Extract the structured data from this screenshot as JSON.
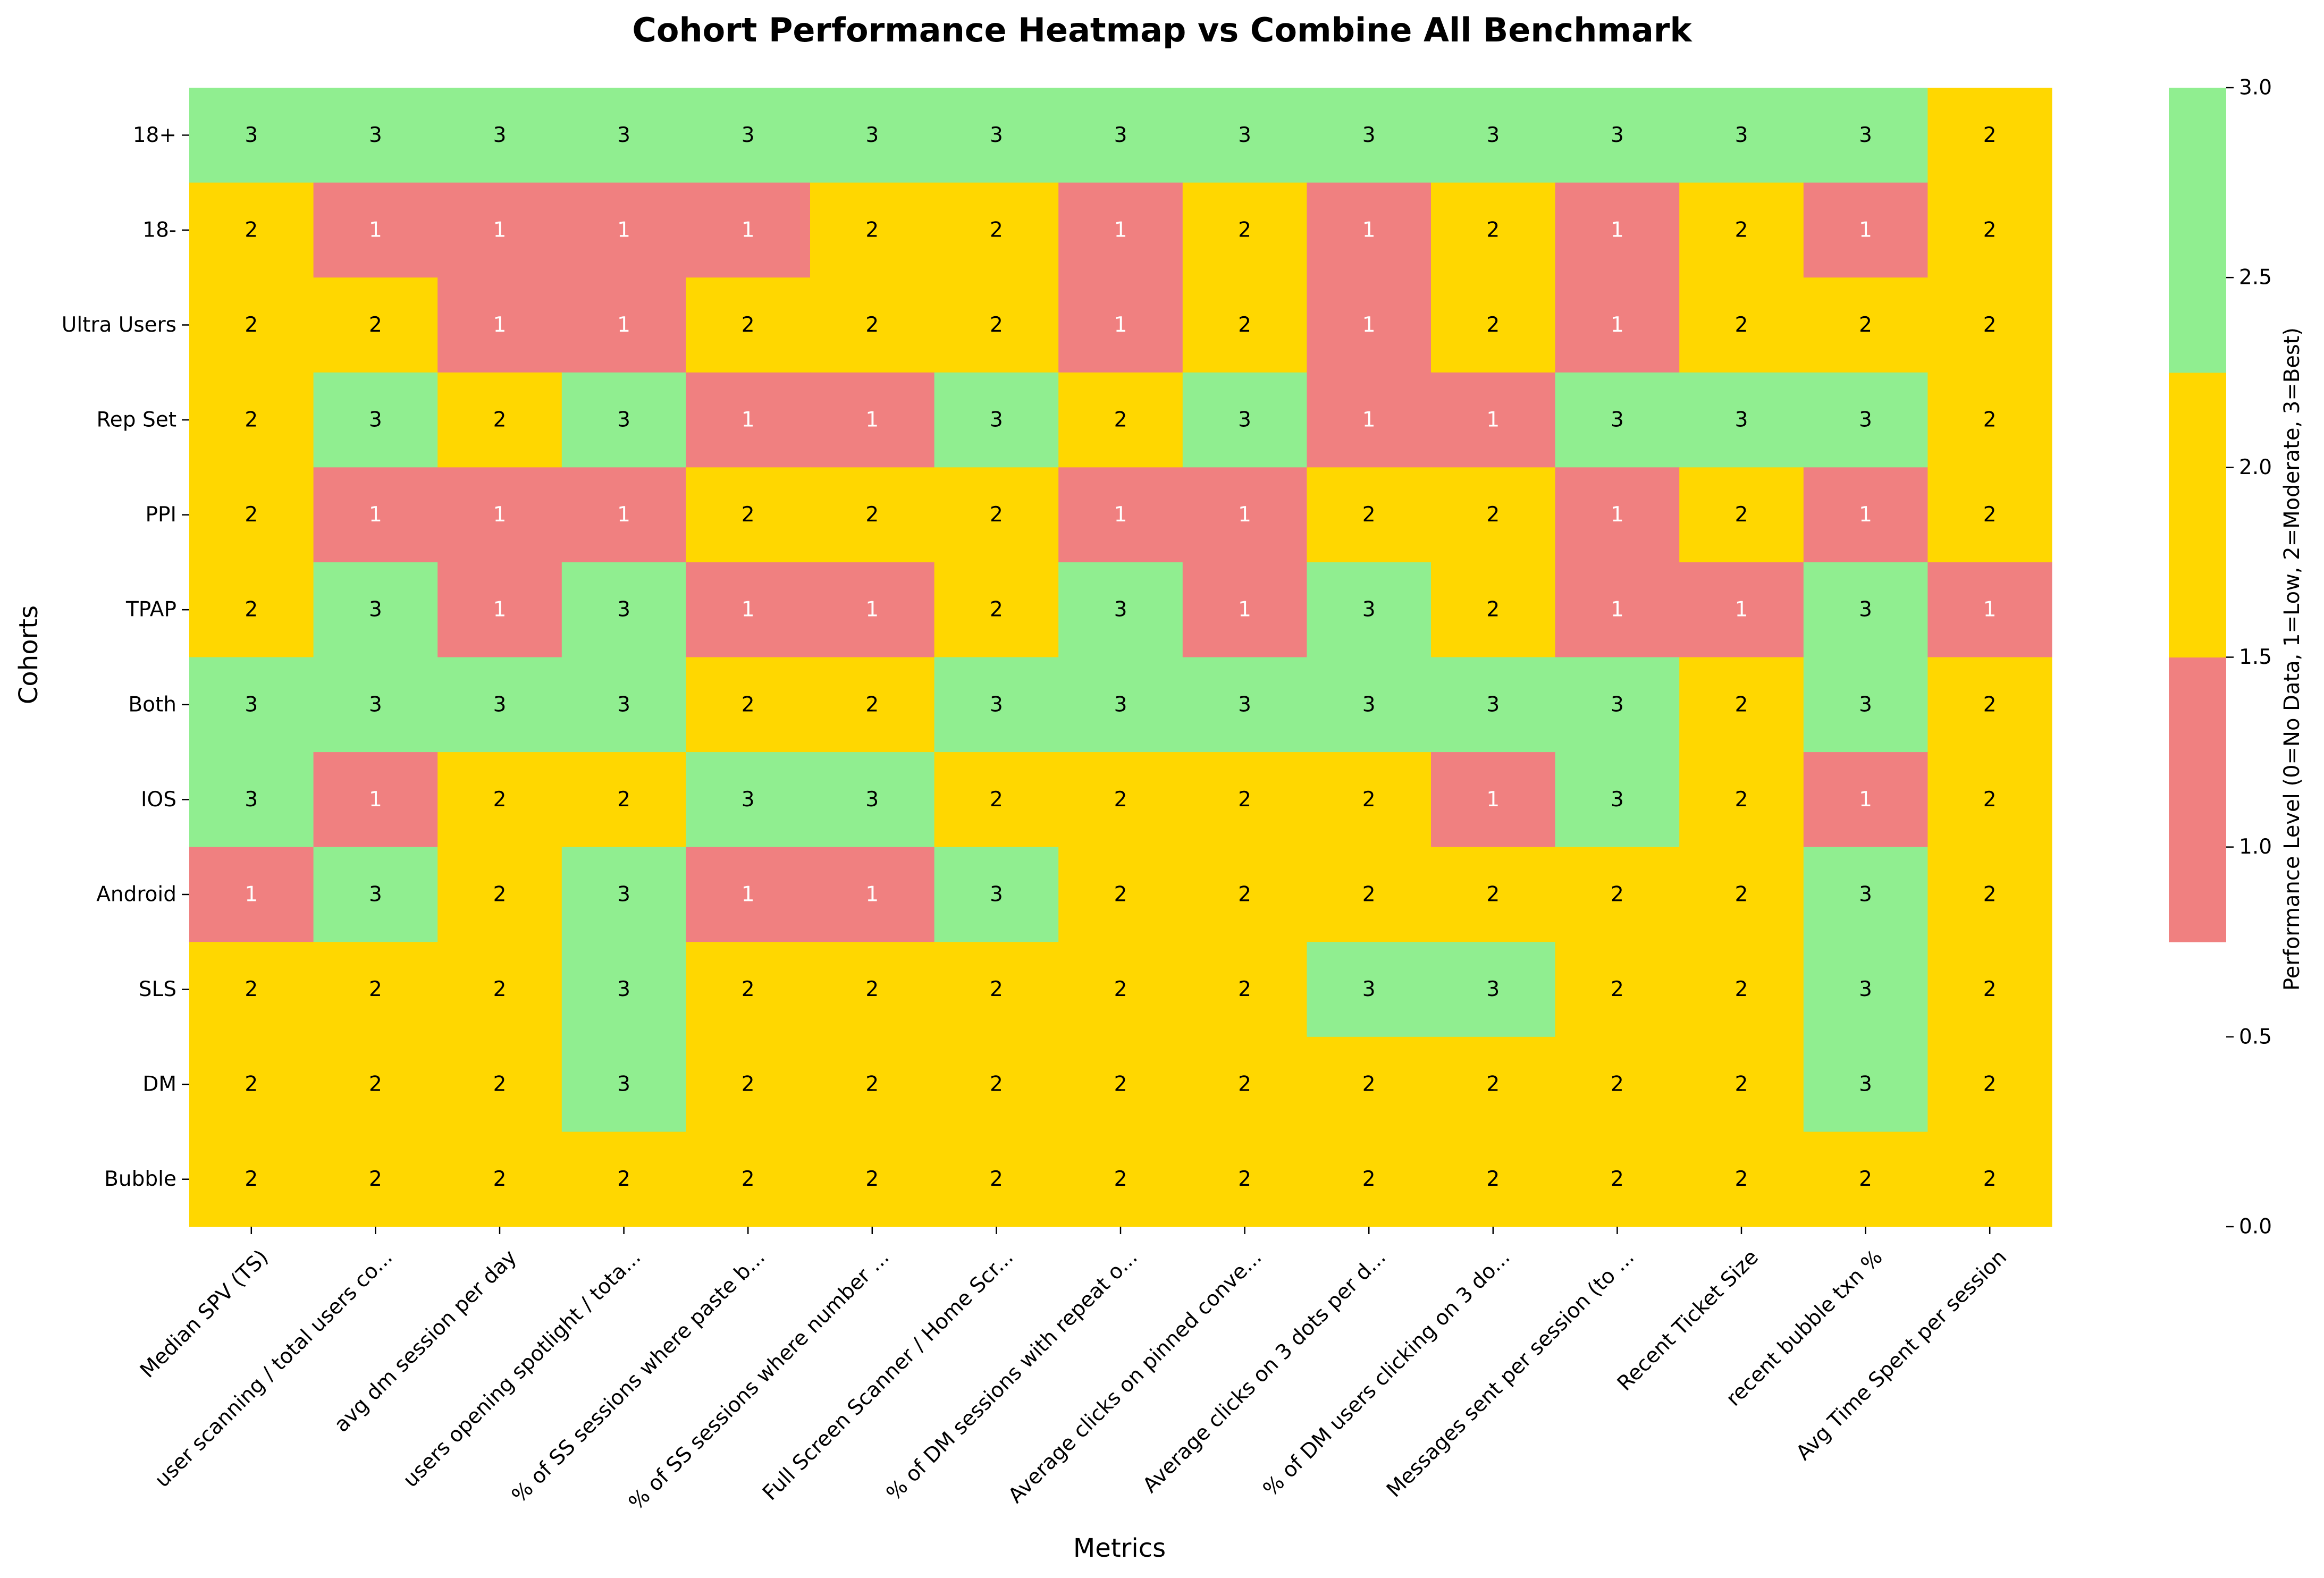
{
  "colors": {
    "level_1": "#f08080",
    "level_2": "#ffd700",
    "level_3": "#90ee90",
    "text_dark": "#000000",
    "text_light": "#ffffff"
  },
  "chart_data": {
    "type": "heatmap",
    "title": "Cohort Performance Heatmap vs Combine All Benchmark",
    "xlabel": "Metrics",
    "ylabel": "Cohorts",
    "colorbar_label": "Performance Level (0=No Data, 1=Low, 2=Moderate, 3=Best)",
    "colorbar_range": [
      0.0,
      3.0
    ],
    "colorbar_ticks": [
      "0.0",
      "0.5",
      "1.0",
      "1.5",
      "2.0",
      "2.5",
      "3.0"
    ],
    "colorbar_bands": [
      {
        "from": 0.75,
        "to": 1.5,
        "color": "#f08080"
      },
      {
        "from": 1.5,
        "to": 2.25,
        "color": "#ffd700"
      },
      {
        "from": 2.25,
        "to": 3.0,
        "color": "#90ee90"
      }
    ],
    "metrics": [
      "Median SPV (TS)",
      "user scanning / total users co...",
      "avg dm session per day",
      "users opening spotlight / tota...",
      "% of SS sessions where paste b...",
      "% of SS sessions where number ...",
      "Full Screen Scanner / Home Scr...",
      "% of DM sessions with repeat o...",
      "Average clicks on pinned conve...",
      "Average clicks on 3 dots per d...",
      "% of DM users clicking on 3 do...",
      "Messages sent per session (to ...",
      "Recent Ticket Size",
      "recent bubble txn %",
      "Avg Time Spent per session"
    ],
    "cohorts": [
      "18+",
      "18-",
      "Ultra Users",
      "Rep Set",
      "PPI",
      "TPAP",
      "Both",
      "IOS ",
      "Android",
      "SLS ",
      "DM",
      "Bubble"
    ],
    "values": [
      [
        3,
        3,
        3,
        3,
        3,
        3,
        3,
        3,
        3,
        3,
        3,
        3,
        3,
        3,
        2
      ],
      [
        2,
        1,
        1,
        1,
        1,
        2,
        2,
        1,
        2,
        1,
        2,
        1,
        2,
        1,
        2
      ],
      [
        2,
        2,
        1,
        1,
        2,
        2,
        2,
        1,
        2,
        1,
        2,
        1,
        2,
        2,
        2
      ],
      [
        2,
        3,
        2,
        3,
        1,
        1,
        3,
        2,
        3,
        1,
        1,
        3,
        3,
        3,
        2
      ],
      [
        2,
        1,
        1,
        1,
        2,
        2,
        2,
        1,
        1,
        2,
        2,
        1,
        2,
        1,
        2
      ],
      [
        2,
        3,
        1,
        3,
        1,
        1,
        2,
        3,
        1,
        3,
        2,
        1,
        1,
        3,
        1
      ],
      [
        3,
        3,
        3,
        3,
        2,
        2,
        3,
        3,
        3,
        3,
        3,
        3,
        2,
        3,
        2
      ],
      [
        3,
        1,
        2,
        2,
        3,
        3,
        2,
        2,
        2,
        2,
        1,
        3,
        2,
        1,
        2
      ],
      [
        1,
        3,
        2,
        3,
        1,
        1,
        3,
        2,
        2,
        2,
        2,
        2,
        2,
        3,
        2
      ],
      [
        2,
        2,
        2,
        3,
        2,
        2,
        2,
        2,
        2,
        3,
        3,
        2,
        2,
        3,
        2
      ],
      [
        2,
        2,
        2,
        3,
        2,
        2,
        2,
        2,
        2,
        2,
        2,
        2,
        2,
        3,
        2
      ],
      [
        2,
        2,
        2,
        2,
        2,
        2,
        2,
        2,
        2,
        2,
        2,
        2,
        2,
        2,
        2
      ]
    ]
  }
}
